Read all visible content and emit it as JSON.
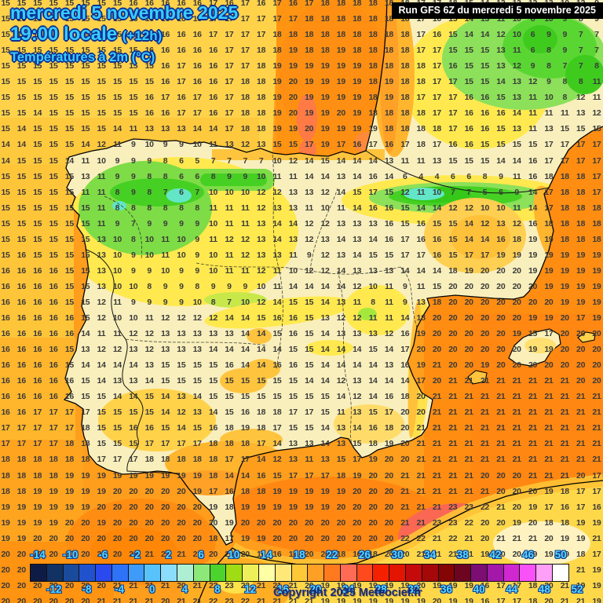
{
  "header": {
    "date_line": "mercredi 5 novembre 2025",
    "time_line": "19:00 locale",
    "time_offset": "(+12h)",
    "subtitle": "Températures à 2m (°C)",
    "run_info": "Run GFS 6Z du mercredi 5 novembre 2025"
  },
  "footer": {
    "copyright": "Copyright 2025 Meteociel.fr"
  },
  "scale": {
    "unit": "°C",
    "min": -14,
    "max": 52,
    "step": 2,
    "top_labels": [
      -14,
      -10,
      -6,
      -2,
      2,
      6,
      10,
      14,
      18,
      22,
      26,
      30,
      34,
      38,
      42,
      46,
      50
    ],
    "bottom_labels": [
      -12,
      -8,
      -4,
      0,
      4,
      8,
      12,
      16,
      20,
      24,
      28,
      32,
      36,
      40,
      44,
      48,
      52
    ],
    "colors": [
      "#0d1b45",
      "#123263",
      "#1a4a9b",
      "#2052cd",
      "#2a49ee",
      "#2e72f8",
      "#3f9bfa",
      "#57c3fa",
      "#8adefb",
      "#aeeed2",
      "#8ce878",
      "#4cd32e",
      "#a0dc14",
      "#eef05a",
      "#ffffa6",
      "#ffe878",
      "#ffc839",
      "#ffa026",
      "#ff7a1e",
      "#ff6b55",
      "#ff4a1e",
      "#f52000",
      "#e31400",
      "#c40a0a",
      "#a50808",
      "#850505",
      "#6d0420",
      "#7c0d72",
      "#a318a8",
      "#d028d0",
      "#f851f8",
      "#ffa0f8",
      "#ffffff"
    ]
  },
  "map_colors": {
    "sea_base": "#ff9d1c",
    "sea_gold": "#ffd24a",
    "sea_deep": "#ff8d12",
    "land_cream": "#f9efbc",
    "land_yellow": "#ffe94e",
    "land_green": "#7edc46",
    "land_green_dark": "#46d024",
    "land_teal": "#63e6c8",
    "sea_salmon": "#fa6752",
    "sea_red": "#f4556a",
    "africa_yellow": "#ffd84a"
  },
  "grid": {
    "rows": [
      "15 15 15 15 15 15 15 15 16 16 16 16 16 17 16 17 16 17 16 17 18 18 18 18 18 18 17 17 18 15 14 12 13 12 13 10 12 9",
      "15 15 15 15 15 15 15 15 16 16 16 16 16 17 17 17 17 17 17 18 18 18 18 18 18 18 17 16 15 14 13 11 10 8 10 9 8 9",
      "15 15 15 15 15 15 15 15 15 16 16 16 16 17 17 17 17 18 18 18 18 18 18 18 18 18 17 16 15 14 14 12 10 6 9 9 7 7",
      "15 15 15 15 15 15 15 15 15 16 16 16 16 16 17 17 18 18 19 18 18 19 18 18 18 18 17 17 15 15 15 13 11 6 8 9 7 7",
      "15 15 15 15 15 15 15 15 15 15 16 17 16 16 17 17 18 19 19 19 19 19 19 18 18 18 18 17 16 15 15 13 12 9 8 7 7 8",
      "15 15 15 15 15 15 15 15 15 15 16 17 16 16 17 18 18 19 20 19 19 19 19 18 19 18 18 17 17 15 15 14 13 12 9 8 8 11",
      "15 15 15 15 15 15 15 15 15 16 17 16 17 16 17 18 18 19 20 19 19 19 19 18 19 18 17 17 17 16 16 15 13 11 10 8 12 11",
      "15 15 14 15 15 15 15 15 15 16 16 17 17 16 17 18 18 19 20 19 19 20 19 18 18 18 18 17 17 16 16 16 14 11 11 11 13 12",
      "15 14 15 15 15 15 15 14 11 13 13 13 14 14 17 18 18 19 19 20 19 19 19 19 18 18 18 18 17 16 16 15 13 11 13 15 15 15",
      "14 14 15 15 15 14 12 11 9 10 9 9 10 11 13 12 13 15 15 17 19 17 16 17 16 17 18 17 16 16 15 15 15 15 17 17 17 17",
      "14 15 15 15 14 11 10 9 9 9 8 6 5 7 7 7 7 10 12 14 15 14 14 14 13 11 11 13 15 15 15 14 14 16 17 17 17 17",
      "15 15 15 15 15 13 11 9 9 8 8 6 6 8 9 9 10 11 11 14 14 13 14 16 14 6 4 4 6 6 8 9 11 16 18 18 18 17",
      "15 15 15 15 15 11 11 8 9 8 7 6 7 10 10 10 12 12 13 13 12 14 15 17 15 12 11 10 7 7 5 6 9 14 17 18 18 17",
      "15 15 15 15 15 15 11 8 8 8 8 8 8 11 11 11 12 13 13 11 10 11 14 16 16 15 14 14 12 12 10 10 11 14 17 18 18 18",
      "15 15 15 15 15 15 11 9 7 9 9 9 9 10 11 11 13 14 14 12 12 13 13 13 16 15 16 15 15 14 12 13 12 16 18 18 18 18",
      "15 15 15 15 15 15 13 10 8 10 11 10 9 11 12 12 13 14 13 12 13 14 13 14 16 17 16 16 15 14 14 16 18 19 19 18 18 18",
      "15 16 15 15 15 15 13 10 9 10 11 10 9 10 11 12 13 13 11 9 12 13 14 15 15 17 17 16 15 17 17 19 19 19 19 19 19 19",
      "16 16 16 16 15 15 13 10 9 9 10 9 9 10 11 11 12 11 10 12 12 14 13 13 13 14 14 14 18 19 20 20 20 19 19 19 19 19",
      "16 16 16 16 15 15 13 10 10 8 9 9 8 9 9 9 10 11 14 14 14 14 12 10 11 9 11 15 20 20 20 20 20 20 19 19 19 19",
      "16 16 16 16 15 15 12 11 9 9 9 9 10 8 7 10 12 14 15 15 14 13 11 8 11 9 13 18 20 20 20 20 20 20 20 19 19 19",
      "16 16 16 16 16 15 12 10 10 11 12 12 12 12 14 14 15 16 16 15 13 12 12 11 11 14 18 20 20 20 20 20 20 19 19 20 17 19",
      "16 16 16 16 16 14 11 11 12 12 13 13 13 13 13 14 14 15 16 15 14 13 13 13 12 16 19 20 20 20 20 20 19 15 17 20 20 20",
      "16 16 16 16 15 13 12 12 13 12 13 13 13 14 14 14 14 14 15 15 14 14 14 15 14 17 20 20 20 20 20 20 20 19 19 20 20 20",
      "16 16 16 16 15 14 14 14 14 13 15 15 15 15 16 14 14 16 16 15 14 14 14 14 13 16 19 21 20 20 19 20 20 20 20 20 20 20",
      "16 16 16 16 16 15 14 13 13 14 15 15 15 15 15 15 15 15 15 14 14 12 13 14 14 14 17 20 21 21 21 21 21 21 21 21 20 20",
      "16 16 16 16 16 15 15 14 14 15 14 13 14 15 15 15 15 15 15 15 15 14 12 14 16 18 20 21 21 21 21 21 21 21 21 21 21 21",
      "16 16 17 17 17 17 15 15 15 15 14 12 13 14 15 16 18 18 17 17 15 11 13 15 17 20 20 21 21 21 21 21 21 21 21 21 21 21",
      "17 17 17 17 17 18 15 15 16 16 15 14 15 16 18 19 18 17 15 15 14 13 14 16 18 20 21 21 21 21 21 21 21 21 21 21 21 21",
      "17 17 17 17 18 18 15 15 15 17 17 17 17 18 18 18 17 14 13 13 14 13 15 18 19 20 21 21 21 21 21 21 21 21 21 21 21 21",
      "18 18 18 18 18 18 17 17 17 18 18 18 18 18 17 17 14 12 13 11 13 15 17 19 20 20 21 21 21 21 21 21 21 21 21 21 21 21",
      "18 18 18 18 19 19 19 19 19 19 19 19 19 18 14 14 16 15 17 17 17 18 19 20 20 21 21 21 21 21 20 20 20 21 21 21 20 17",
      "18 18 19 19 19 19 19 20 20 20 20 20 19 17 16 18 18 19 19 19 19 19 20 20 20 21 21 21 21 21 21 20 20 20 19 18 17 17",
      "19 19 19 19 19 19 20 20 20 20 20 20 20 19 18 19 19 19 19 19 19 20 20 20 20 21 21 21 23 23 22 21 20 19 17 16 17 16",
      "19 19 19 19 20 20 19 20 20 20 20 20 20 20 19 20 20 20 20 20 20 20 20 20 20 21 21 23 23 22 20 20 19 20 18 18 19 19",
      "19 19 20 20 20 20 20 20 20 20 20 20 20 18 17 19 19 20 20 20 20 20 20 20 20 22 22 21 22 21 20 21 21 21 20 19 19 21",
      "20 20 20 20 20 20 20 20 21 21 21 21 21 20 20 20 16 16 18 20 20 18 16 18 20 20 21 21 21 21 19 20 20 19 19 19 18 17",
      "20 20 20 20 20 20 21 21 21 21 21 20 21 22 23 23 22 19 19 19 19 19 19 19 19 19 19 20 19 19 19 16 17 17 18 20 21 19",
      "20 20 20 20 20 20 20 21 21 21 21 20 21 22 23 23 21 21 21 20 19 19 19 19 19 19 20 19 19 19 16 17 17 18 20 21 19 19",
      "20 20 20 20 20 20 21 21 21 21 20 21 21 22 23 22 21 21 21 21 19 19 19 19 19 19 19 20 19 19 16 17 17 18 20 21 21 19"
    ]
  }
}
